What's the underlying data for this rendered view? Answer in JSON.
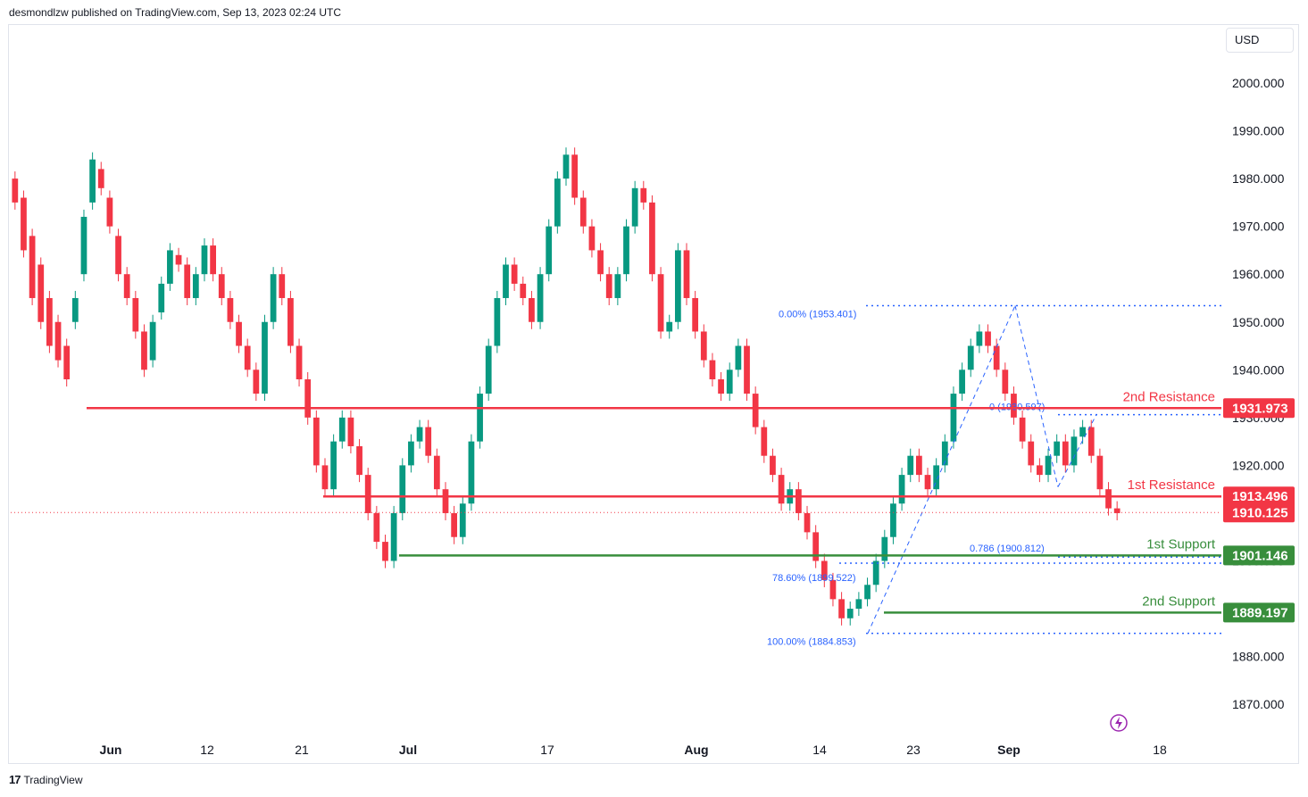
{
  "header": {
    "publisher": "desmondlzw published on TradingView.com, Sep 13, 2023 02:24 UTC"
  },
  "toolbar": {
    "currency": "USD"
  },
  "footer": {
    "brand": "TradingView"
  },
  "colors": {
    "resistance": "#f23645",
    "support": "#388e3c",
    "fib": "#2962ff",
    "up": "#089981",
    "down": "#f23645"
  },
  "chart_data": {
    "type": "candlestick",
    "title": "",
    "xlabel": "",
    "ylabel": "",
    "ylim": [
      1862,
      2010
    ],
    "grid": false,
    "y_ticks": [
      "2000.000",
      "1990.000",
      "1980.000",
      "1970.000",
      "1960.000",
      "1950.000",
      "1940.000",
      "1930.000",
      "1920.000",
      "1910.000",
      "1900.000",
      "1890.000",
      "1880.000",
      "1870.000"
    ],
    "x_ticks": [
      {
        "label": "Jun",
        "bold": true
      },
      {
        "label": "12",
        "bold": false
      },
      {
        "label": "21",
        "bold": false
      },
      {
        "label": "Jul",
        "bold": true
      },
      {
        "label": "17",
        "bold": false
      },
      {
        "label": "Aug",
        "bold": true
      },
      {
        "label": "14",
        "bold": false
      },
      {
        "label": "23",
        "bold": false
      },
      {
        "label": "Sep",
        "bold": true
      },
      {
        "label": "18",
        "bold": false
      }
    ],
    "price_path": [
      [
        1980,
        1975
      ],
      [
        1976,
        1965
      ],
      [
        1968,
        1955
      ],
      [
        1962,
        1950
      ],
      [
        1955,
        1945
      ],
      [
        1950,
        1942
      ],
      [
        1945,
        1938
      ],
      [
        1950,
        1955
      ],
      [
        1960,
        1972
      ],
      [
        1975,
        1984
      ],
      [
        1982,
        1978
      ],
      [
        1976,
        1970
      ],
      [
        1968,
        1960
      ],
      [
        1960,
        1955
      ],
      [
        1955,
        1948
      ],
      [
        1948,
        1940
      ],
      [
        1942,
        1950
      ],
      [
        1952,
        1958
      ],
      [
        1958,
        1965
      ],
      [
        1964,
        1962
      ],
      [
        1962,
        1955
      ],
      [
        1955,
        1960
      ],
      [
        1960,
        1966
      ],
      [
        1966,
        1960
      ],
      [
        1960,
        1955
      ],
      [
        1955,
        1950
      ],
      [
        1950,
        1945
      ],
      [
        1945,
        1940
      ],
      [
        1940,
        1935
      ],
      [
        1935,
        1950
      ],
      [
        1950,
        1960
      ],
      [
        1960,
        1955
      ],
      [
        1955,
        1945
      ],
      [
        1945,
        1938
      ],
      [
        1938,
        1930
      ],
      [
        1930,
        1920
      ],
      [
        1920,
        1915
      ],
      [
        1915,
        1925
      ],
      [
        1925,
        1930
      ],
      [
        1930,
        1924
      ],
      [
        1924,
        1918
      ],
      [
        1918,
        1910
      ],
      [
        1910,
        1904
      ],
      [
        1904,
        1900
      ],
      [
        1900,
        1910
      ],
      [
        1910,
        1920
      ],
      [
        1920,
        1925
      ],
      [
        1925,
        1928
      ],
      [
        1928,
        1922
      ],
      [
        1922,
        1915
      ],
      [
        1915,
        1910
      ],
      [
        1910,
        1905
      ],
      [
        1905,
        1912
      ],
      [
        1912,
        1925
      ],
      [
        1925,
        1935
      ],
      [
        1935,
        1945
      ],
      [
        1945,
        1955
      ],
      [
        1955,
        1962
      ],
      [
        1962,
        1958
      ],
      [
        1958,
        1955
      ],
      [
        1955,
        1950
      ],
      [
        1950,
        1960
      ],
      [
        1960,
        1970
      ],
      [
        1970,
        1980
      ],
      [
        1980,
        1985
      ],
      [
        1985,
        1976
      ],
      [
        1976,
        1970
      ],
      [
        1970,
        1965
      ],
      [
        1965,
        1960
      ],
      [
        1960,
        1955
      ],
      [
        1955,
        1960
      ],
      [
        1960,
        1970
      ],
      [
        1970,
        1978
      ],
      [
        1978,
        1975
      ],
      [
        1975,
        1960
      ],
      [
        1960,
        1948
      ],
      [
        1948,
        1950
      ],
      [
        1950,
        1965
      ],
      [
        1965,
        1955
      ],
      [
        1955,
        1948
      ],
      [
        1948,
        1942
      ],
      [
        1942,
        1938
      ],
      [
        1938,
        1935
      ],
      [
        1935,
        1940
      ],
      [
        1940,
        1945
      ],
      [
        1945,
        1935
      ],
      [
        1935,
        1928
      ],
      [
        1928,
        1922
      ],
      [
        1922,
        1918
      ],
      [
        1918,
        1912
      ],
      [
        1912,
        1915
      ],
      [
        1915,
        1910
      ],
      [
        1910,
        1906
      ],
      [
        1906,
        1900
      ],
      [
        1900,
        1896
      ],
      [
        1896,
        1892
      ],
      [
        1892,
        1888
      ],
      [
        1888,
        1890
      ],
      [
        1890,
        1892
      ],
      [
        1892,
        1895
      ],
      [
        1895,
        1900
      ],
      [
        1900,
        1905
      ],
      [
        1905,
        1912
      ],
      [
        1912,
        1918
      ],
      [
        1918,
        1922
      ],
      [
        1922,
        1918
      ],
      [
        1918,
        1915
      ],
      [
        1915,
        1920
      ],
      [
        1920,
        1925
      ],
      [
        1925,
        1935
      ],
      [
        1935,
        1940
      ],
      [
        1940,
        1945
      ],
      [
        1945,
        1948
      ],
      [
        1948,
        1945
      ],
      [
        1945,
        1940
      ],
      [
        1940,
        1935
      ],
      [
        1935,
        1930
      ],
      [
        1930,
        1925
      ],
      [
        1925,
        1920
      ],
      [
        1920,
        1918
      ],
      [
        1918,
        1922
      ],
      [
        1922,
        1925
      ],
      [
        1925,
        1920
      ],
      [
        1920,
        1926
      ],
      [
        1926,
        1928
      ],
      [
        1928,
        1922
      ],
      [
        1922,
        1915
      ],
      [
        1915,
        1911
      ],
      [
        1911,
        1910
      ]
    ],
    "levels": [
      {
        "name": "2nd Resistance",
        "value": "1931.973",
        "price": 1931.973,
        "kind": "resistance"
      },
      {
        "name": "1st Resistance",
        "value": "1913.496",
        "price": 1913.496,
        "kind": "resistance"
      },
      {
        "name": "1st Support",
        "value": "1901.146",
        "price": 1901.146,
        "kind": "support"
      },
      {
        "name": "2nd Support",
        "value": "1889.197",
        "price": 1889.197,
        "kind": "support"
      }
    ],
    "last_price": {
      "value": "1910.125",
      "price": 1910.125
    },
    "fib_levels": [
      {
        "label": "0.00% (1953.401)",
        "price": 1953.401
      },
      {
        "label": "78.60% (1899.522)",
        "price": 1899.522
      },
      {
        "label": "100.00% (1884.853)",
        "price": 1884.853
      },
      {
        "label": "0 (1930.597)",
        "price": 1930.597
      },
      {
        "label": "0.786 (1900.812)",
        "price": 1900.812
      }
    ]
  }
}
